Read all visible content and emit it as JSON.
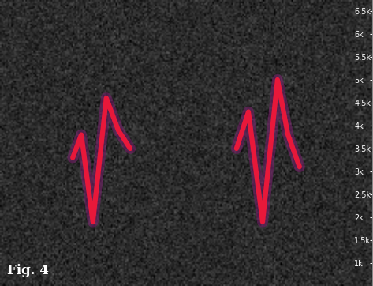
{
  "chart_data": {
    "type": "spectrogram",
    "title": "Fig. 4",
    "series": [
      {
        "color": "#e8183a",
        "x": [
          19.5,
          21.8,
          24.9,
          28.5,
          31.7,
          34.9
        ],
        "values": [
          3300,
          3800,
          1900,
          4600,
          3900,
          3500
        ]
      },
      {
        "color": "#e8183a",
        "x": [
          63.4,
          66.6,
          70.4,
          74.4,
          77.2,
          80.3
        ],
        "values": [
          3500,
          4300,
          1900,
          5000,
          3800,
          3100
        ]
      }
    ],
    "xlim": [
      0,
      100
    ],
    "ylim": [
      500,
      6740
    ],
    "yticks": [
      {
        "value": 1000,
        "label": "1k"
      },
      {
        "value": 1500,
        "label": "1.5k"
      },
      {
        "value": 2000,
        "label": "2k"
      },
      {
        "value": 2500,
        "label": "2.5k"
      },
      {
        "value": 3000,
        "label": "3k"
      },
      {
        "value": 3500,
        "label": "3.5k"
      },
      {
        "value": 4000,
        "label": "4k"
      },
      {
        "value": 4500,
        "label": "4.5k"
      },
      {
        "value": 5000,
        "label": "5k"
      },
      {
        "value": 5500,
        "label": "5.5k"
      },
      {
        "value": 6000,
        "label": "6k"
      },
      {
        "value": 6500,
        "label": "6.5k"
      }
    ],
    "tick_labels": "y",
    "grid": false,
    "line_style": "solid"
  }
}
